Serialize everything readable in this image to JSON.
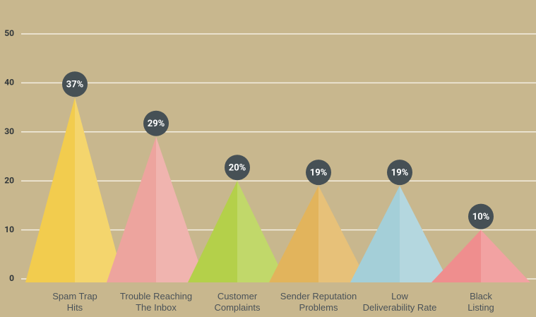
{
  "chart_data": {
    "type": "pyramid",
    "categories": [
      "Spam Trap\nHits",
      "Trouble Reaching\nThe Inbox",
      "Customer\nComplaints",
      "Sender Reputation\nProblems",
      "Low\nDeliverability Rate",
      "Black\nListing"
    ],
    "values": [
      37,
      29,
      20,
      19,
      19,
      10
    ],
    "value_labels": [
      "37%",
      "29%",
      "20%",
      "19%",
      "19%",
      "10%"
    ],
    "colors": [
      "#f2cc4e",
      "#eda49e",
      "#b4d04a",
      "#e2b45c",
      "#a4cfd8",
      "#ef8e8e"
    ],
    "ylim": [
      0,
      50
    ],
    "yticks": [
      0,
      10,
      20,
      30,
      40,
      50
    ],
    "grid": true
  }
}
